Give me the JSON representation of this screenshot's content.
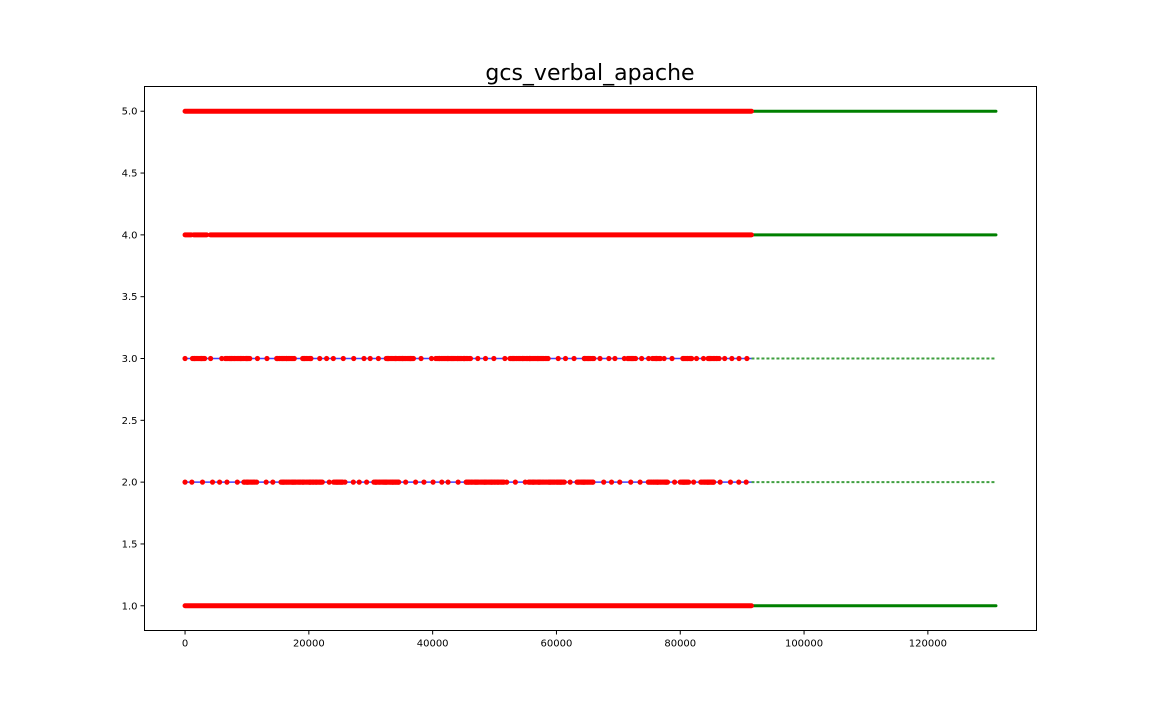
{
  "chart_data": {
    "type": "scatter",
    "title": "gcs_verbal_apache",
    "xlabel": "",
    "ylabel": "",
    "xlim": [
      -6550,
      137550
    ],
    "ylim": [
      0.8,
      5.2
    ],
    "x_ticks": [
      0,
      20000,
      40000,
      60000,
      80000,
      100000,
      120000
    ],
    "x_tick_labels": [
      "0",
      "20000",
      "40000",
      "60000",
      "80000",
      "100000",
      "120000"
    ],
    "y_ticks": [
      1.0,
      1.5,
      2.0,
      2.5,
      3.0,
      3.5,
      4.0,
      4.5,
      5.0
    ],
    "y_tick_labels": [
      "1.0",
      "1.5",
      "2.0",
      "2.5",
      "3.0",
      "3.5",
      "4.0",
      "4.5",
      "5.0"
    ],
    "grid": false,
    "legend": "none",
    "colors": {
      "red": "#ff0000",
      "blue": "#0000ff",
      "green": "#008000"
    },
    "series": [
      {
        "color": "green",
        "density": "dense",
        "segments": [
          {
            "y": 1.0,
            "x": [
              91500,
              131000
            ]
          },
          {
            "y": 4.0,
            "x": [
              91500,
              131000
            ]
          },
          {
            "y": 5.0,
            "x": [
              91500,
              131000
            ]
          }
        ]
      },
      {
        "color": "green",
        "density": "sparse",
        "segments": [
          {
            "y": 2.0,
            "x": [
              91500,
              131000
            ]
          },
          {
            "y": 3.0,
            "x": [
              91500,
              131000
            ]
          }
        ]
      },
      {
        "color": "blue",
        "density": "line",
        "segments": [
          {
            "y": 2.0,
            "x": [
              0,
              91500
            ]
          },
          {
            "y": 3.0,
            "x": [
              0,
              91500
            ]
          },
          {
            "y": 4.0,
            "x": [
              0,
              91500
            ]
          }
        ]
      },
      {
        "color": "red",
        "density": "dense",
        "segments": [
          {
            "y": 1.0,
            "x": [
              0,
              91500
            ]
          },
          {
            "y": 5.0,
            "x": [
              0,
              91500
            ]
          }
        ]
      },
      {
        "color": "red",
        "density": "clustered",
        "segments": [
          {
            "y": 4.0,
            "x": [
              0,
              91500
            ],
            "gaps": [
              [
                1000,
                1400
              ],
              [
                3500,
                4100
              ]
            ]
          }
        ]
      },
      {
        "color": "red",
        "density": "sparse",
        "segments": [
          {
            "y": 3.0,
            "x": [
              0,
              91500
            ],
            "clusters": [
              [
                1200,
                3200
              ],
              [
                6500,
                10500
              ],
              [
                14800,
                17500
              ],
              [
                19000,
                20500
              ],
              [
                32500,
                37000
              ],
              [
                40500,
                46000
              ],
              [
                52500,
                58500
              ],
              [
                64500,
                66000
              ],
              [
                71500,
                73000
              ],
              [
                75500,
                77000
              ],
              [
                80500,
                82000
              ],
              [
                84500,
                86000
              ]
            ]
          },
          {
            "y": 2.0,
            "x": [
              0,
              91500
            ],
            "clusters": [
              [
                9500,
                11500
              ],
              [
                15500,
                22000
              ],
              [
                24000,
                25500
              ],
              [
                30500,
                34500
              ],
              [
                45500,
                51500
              ],
              [
                55500,
                61500
              ],
              [
                63500,
                66000
              ],
              [
                75000,
                78000
              ],
              [
                80000,
                81500
              ],
              [
                83500,
                85500
              ]
            ]
          }
        ]
      }
    ]
  }
}
